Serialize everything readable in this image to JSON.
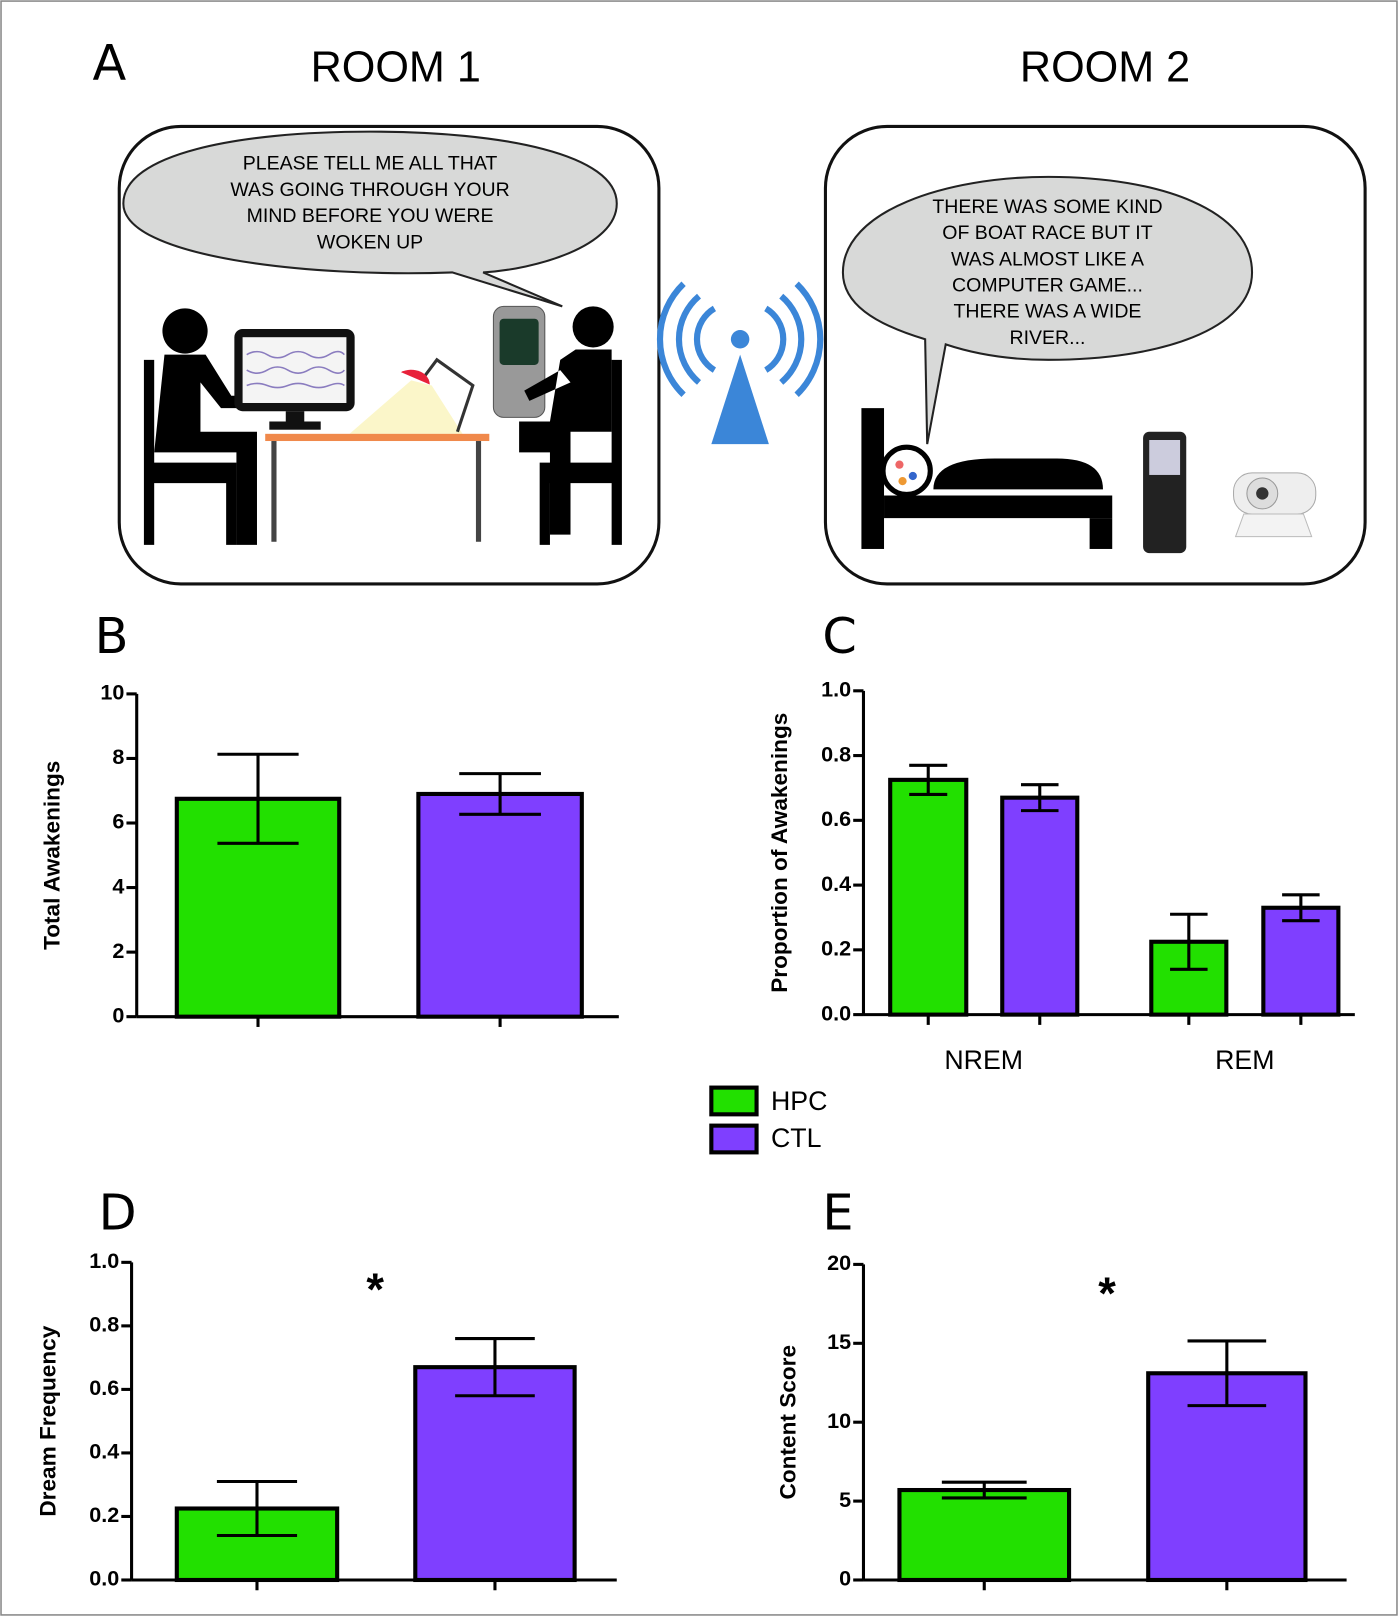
{
  "panel_a": {
    "label": "A",
    "rooms": [
      {
        "title": "ROOM 1",
        "speech": [
          "PLEASE TELL ME ALL THAT",
          "WAS GOING THROUGH YOUR",
          "MIND BEFORE YOU WERE",
          "WOKEN UP"
        ]
      },
      {
        "title": "ROOM 2",
        "speech": [
          "THERE WAS SOME KIND",
          "OF BOAT RACE BUT IT",
          "WAS ALMOST LIKE A",
          "COMPUTER GAME...",
          "THERE WAS A WIDE",
          "RIVER..."
        ]
      }
    ]
  },
  "chart_data": [
    {
      "type": "bar",
      "label": "B",
      "y_label": "Total Awakenings",
      "categories": [
        null,
        null
      ],
      "values": [
        6.75,
        6.9
      ],
      "errors": [
        1.38,
        0.63
      ],
      "colors": [
        "#22e000",
        "#7f3fff"
      ],
      "ylim": [
        0,
        10
      ],
      "yticks": [
        0,
        2,
        4,
        6,
        8,
        10
      ]
    },
    {
      "type": "bar",
      "label": "C",
      "y_label": "Proportion of Awakenings",
      "categories": [
        "NREM",
        "REM"
      ],
      "series": [
        {
          "name": "HPC",
          "color": "#22e000",
          "values": [
            0.725,
            0.225
          ],
          "errors": [
            0.045,
            0.085
          ]
        },
        {
          "name": "CTL",
          "color": "#7f3fff",
          "values": [
            0.67,
            0.33
          ],
          "errors": [
            0.04,
            0.04
          ]
        }
      ],
      "ylim": [
        0,
        1
      ],
      "yticks": [
        {
          "value": 0,
          "label": "0.0"
        },
        0.2,
        0.4,
        0.6,
        0.8,
        {
          "value": 1,
          "label": "1.0"
        }
      ]
    },
    {
      "type": "bar",
      "label": "D",
      "y_label": "Dream Frequency",
      "annotation": "*",
      "categories": [
        null,
        null
      ],
      "values": [
        0.225,
        0.67
      ],
      "errors": [
        0.085,
        0.09
      ],
      "colors": [
        "#22e000",
        "#7f3fff"
      ],
      "ylim": [
        0,
        1
      ],
      "yticks": [
        {
          "value": 0,
          "label": "0.0"
        },
        0.2,
        0.4,
        0.6,
        0.8,
        {
          "value": 1,
          "label": "1.0"
        }
      ]
    },
    {
      "type": "bar",
      "label": "E",
      "y_label": "Content Score",
      "annotation": "*",
      "categories": [
        null,
        null
      ],
      "values": [
        5.7,
        13.1
      ],
      "errors": [
        0.5,
        2.05
      ],
      "colors": [
        "#22e000",
        "#7f3fff"
      ],
      "ylim": [
        0,
        20
      ],
      "yticks": [
        0,
        5,
        10,
        15,
        20
      ]
    }
  ]
}
